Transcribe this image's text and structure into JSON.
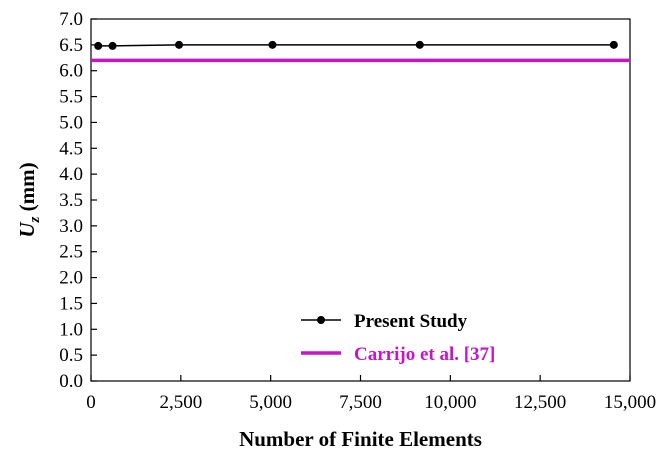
{
  "chart_data": {
    "type": "line",
    "xlabel": "Number of Finite Elements",
    "ylabel_main": "U",
    "ylabel_sub": "z",
    "ylabel_unit": " (mm)",
    "xlim": [
      0,
      15000
    ],
    "ylim": [
      0.0,
      7.0
    ],
    "x_ticks": [
      0,
      2500,
      5000,
      7500,
      10000,
      12500,
      15000
    ],
    "x_tick_labels": [
      "0",
      "2,500",
      "5,000",
      "7,500",
      "10,000",
      "12,500",
      "15,000"
    ],
    "y_ticks": [
      0.0,
      0.5,
      1.0,
      1.5,
      2.0,
      2.5,
      3.0,
      3.5,
      4.0,
      4.5,
      5.0,
      5.5,
      6.0,
      6.5,
      7.0
    ],
    "y_tick_labels": [
      "0.0",
      "0.5",
      "1.0",
      "1.5",
      "2.0",
      "2.5",
      "3.0",
      "3.5",
      "4.0",
      "4.5",
      "5.0",
      "5.5",
      "6.0",
      "6.5",
      "7.0"
    ],
    "grid": false,
    "legend_position": "bottom-right",
    "series": [
      {
        "name": "Present Study",
        "color": "#000000",
        "marker": "circle",
        "x": [
          200,
          600,
          2450,
          5050,
          9150,
          14550
        ],
        "y": [
          6.48,
          6.48,
          6.5,
          6.5,
          6.5,
          6.5
        ]
      },
      {
        "name": "Carrijo et al. [37]",
        "color": "#c814c8",
        "marker": "none",
        "x": [
          0,
          15000
        ],
        "y": [
          6.2,
          6.2
        ]
      }
    ]
  }
}
